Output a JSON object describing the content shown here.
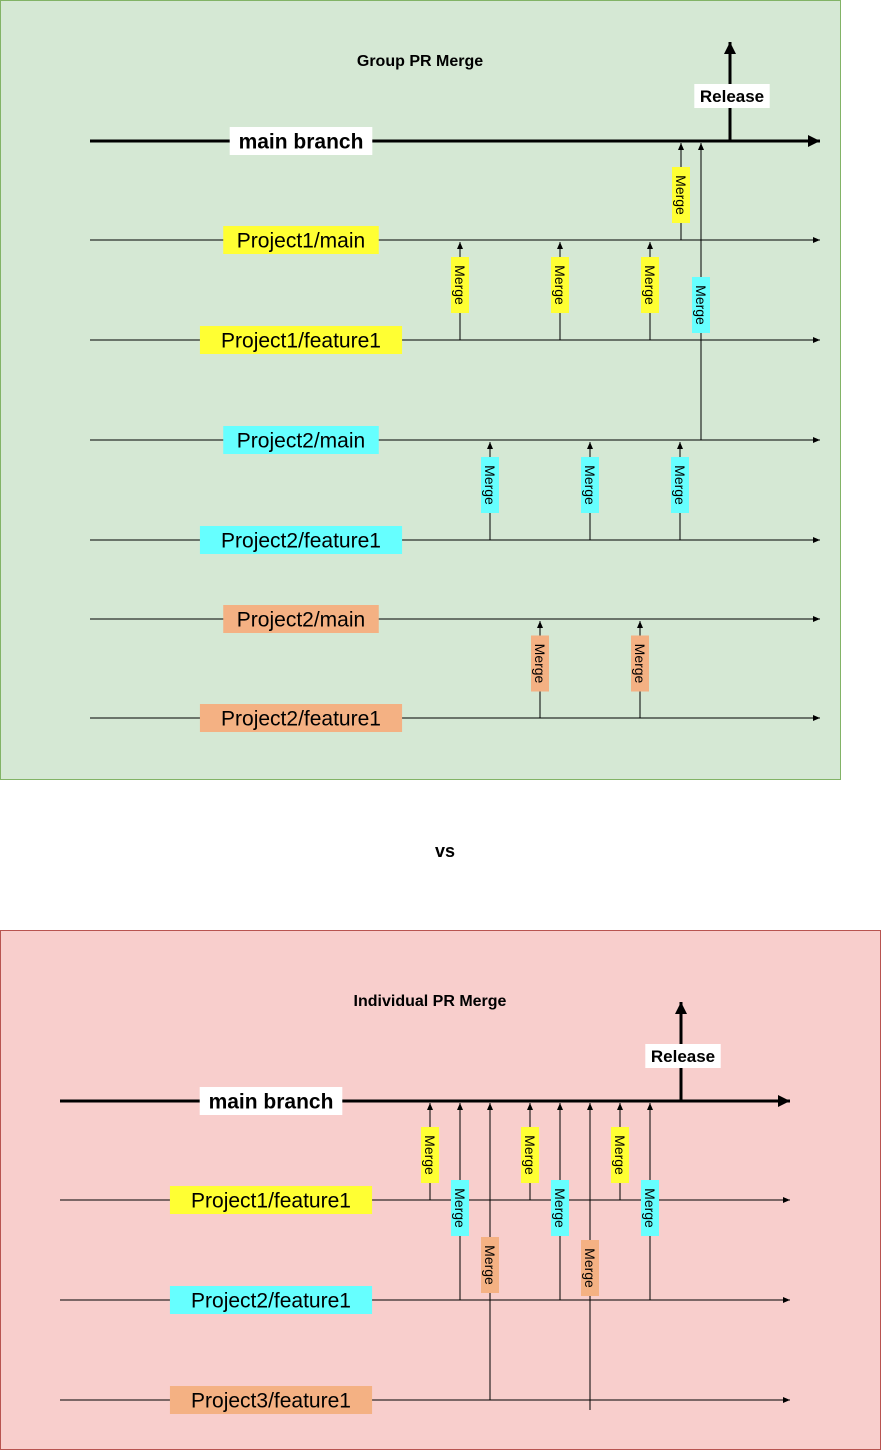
{
  "colors": {
    "group_bg": "#d5e8d4",
    "individual_bg": "#f8cecc",
    "frame": "#82b366",
    "frame_individual": "#b85450",
    "yellow": "#ffff33",
    "cyan": "#66ffff",
    "orange": "#f4b183",
    "white": "#ffffff",
    "line": "#000000"
  },
  "separator": "vs",
  "group": {
    "title": "Group PR Merge",
    "main_label": "main branch",
    "release_label": "Release",
    "merge_label": "Merge",
    "branches": [
      {
        "label": "Project1/main",
        "color": "yellow"
      },
      {
        "label": "Project1/feature1",
        "color": "yellow"
      },
      {
        "label": "Project2/main",
        "color": "cyan"
      },
      {
        "label": "Project2/feature1",
        "color": "cyan"
      },
      {
        "label": "Project2/main",
        "color": "orange"
      },
      {
        "label": "Project2/feature1",
        "color": "orange"
      }
    ]
  },
  "individual": {
    "title": "Individual PR Merge",
    "main_label": "main branch",
    "release_label": "Release",
    "merge_label": "Merge",
    "branches": [
      {
        "label": "Project1/feature1",
        "color": "yellow"
      },
      {
        "label": "Project2/feature1",
        "color": "cyan"
      },
      {
        "label": "Project3/feature1",
        "color": "orange"
      }
    ]
  }
}
